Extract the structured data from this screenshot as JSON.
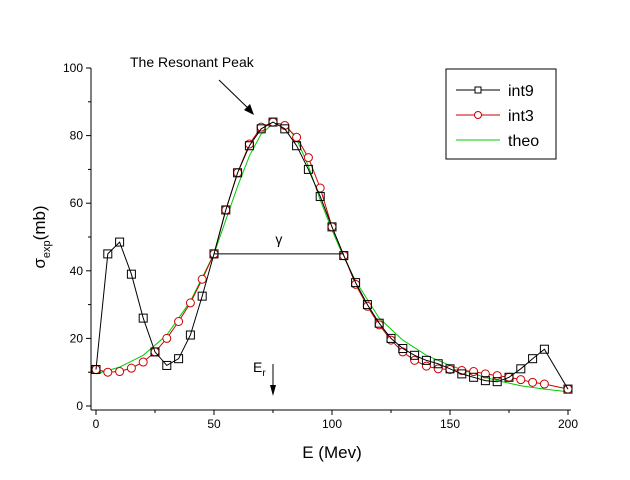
{
  "chart_data": {
    "type": "line",
    "title": "",
    "xlabel": "E (Mev)",
    "ylabel": {
      "main": "σ",
      "subscript": "exp",
      "suffix": "(mb)"
    },
    "xlim": [
      0,
      200
    ],
    "ylim": [
      0,
      100
    ],
    "x_ticks": [
      0,
      50,
      100,
      150,
      200
    ],
    "y_ticks": [
      0,
      20,
      40,
      60,
      80,
      100
    ],
    "x_tick_labels": [
      "0",
      "50",
      "100",
      "150",
      "200"
    ],
    "y_tick_labels": [
      "0",
      "20",
      "40",
      "60",
      "80",
      "100"
    ],
    "grid": false,
    "legend_position": "top-right",
    "series": [
      {
        "name": "int9",
        "color": "#000000",
        "marker": "square",
        "x": [
          0,
          5,
          10,
          15,
          20,
          25,
          30,
          35,
          40,
          45,
          50,
          55,
          60,
          65,
          70,
          75,
          80,
          85,
          90,
          95,
          100,
          105,
          110,
          115,
          120,
          125,
          130,
          135,
          140,
          145,
          150,
          155,
          160,
          165,
          170,
          175,
          180,
          185,
          190,
          200
        ],
        "y": [
          10.8,
          45,
          48.5,
          39,
          26,
          16,
          12,
          14,
          21,
          32.5,
          45,
          58,
          69,
          77,
          82,
          84,
          82,
          77,
          70,
          62,
          53,
          44.5,
          36.5,
          30,
          24.5,
          20,
          17,
          15,
          13.5,
          12.5,
          11,
          9.5,
          8.5,
          7.5,
          7.2,
          8.5,
          11,
          14,
          16.8,
          5
        ]
      },
      {
        "name": "int3",
        "color": "#cc0000",
        "marker": "circle",
        "x": [
          0,
          5,
          10,
          15,
          20,
          25,
          30,
          35,
          40,
          45,
          50,
          55,
          60,
          65,
          70,
          75,
          80,
          85,
          90,
          95,
          100,
          105,
          110,
          115,
          120,
          125,
          130,
          135,
          140,
          145,
          150,
          155,
          160,
          165,
          170,
          175,
          180,
          185,
          190,
          200
        ],
        "y": [
          10.8,
          10,
          10.2,
          11.2,
          13,
          16,
          20,
          25,
          30.5,
          37.5,
          45,
          58,
          69,
          77.5,
          82.5,
          84,
          83,
          79.5,
          73.5,
          64.5,
          53,
          44.5,
          36,
          29.5,
          24,
          19.5,
          16,
          13.5,
          11.8,
          11,
          10.8,
          10.5,
          10.2,
          9.5,
          9,
          8.5,
          7.8,
          7,
          6.5,
          5
        ]
      },
      {
        "name": "theo",
        "color": "#00cc00",
        "marker": "none",
        "x": [
          0,
          10,
          20,
          30,
          40,
          50,
          55,
          60,
          65,
          70,
          75,
          80,
          85,
          90,
          95,
          100,
          105,
          110,
          120,
          130,
          140,
          150,
          160,
          170,
          180,
          190,
          200
        ],
        "y": [
          9.5,
          11.5,
          15,
          21,
          31,
          45,
          55,
          65,
          74,
          80.5,
          83.5,
          83.5,
          79,
          71,
          61,
          52,
          44,
          37,
          26,
          19.5,
          15,
          12,
          9.5,
          7.5,
          6,
          5,
          4.2
        ]
      }
    ],
    "annotations": {
      "resonant_peak_label": "The Resonant Peak",
      "gamma_label": "γ",
      "gamma_y": 45,
      "gamma_x_start": 50,
      "gamma_x_end": 105,
      "er_label": "E",
      "er_subscript": "r",
      "er_x": 75
    }
  }
}
